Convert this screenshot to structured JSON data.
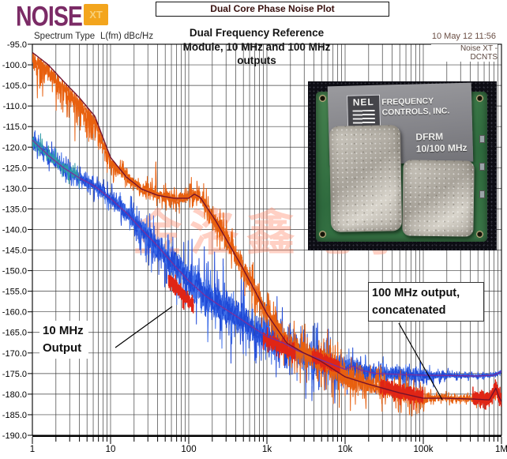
{
  "window": {
    "title": "Dual Core Phase Noise Plot"
  },
  "logo": {
    "name": "NOISE",
    "badge": "XT"
  },
  "labels": {
    "spectrum_type": "Spectrum Type",
    "unit": "L(fm) dBc/Hz"
  },
  "status": {
    "datetime": "10 May 12   11:56",
    "device": "Noise XT - DCNTS"
  },
  "chart_title": {
    "line1": "Dual Frequency Reference",
    "line2": "Module, 10 MHz and 100 MHz",
    "line3": "outputs"
  },
  "annotations": {
    "low": {
      "line1": "10 MHz",
      "line2": "Output"
    },
    "high": {
      "line1": "100 MHz output,",
      "line2": "concatenated"
    }
  },
  "watermark": "金洛鑫电子",
  "photo": {
    "brand": "NEL",
    "company_line1": "FREQUENCY",
    "company_line2": "CONTROLS, INC.",
    "model": "DFRM",
    "model_freq": "10/100 MHz"
  },
  "chart_data": {
    "type": "line",
    "title": "Dual Frequency Reference Module, 10 MHz and 100 MHz outputs",
    "ylabel": "L(fm) dBc/Hz",
    "xscale": "log",
    "xlim": [
      1,
      1000000
    ],
    "ylim": [
      -190,
      -95
    ],
    "ytick_step": 5,
    "xtick_labels": [
      "1",
      "10",
      "100",
      "1k",
      "10k",
      "100k",
      "1M"
    ],
    "grid": true,
    "colors": {
      "grid": "#2a2a2a",
      "frame": "#000000",
      "red_overlay": "#e02515",
      "watermark": "#ff8f73"
    },
    "series": [
      {
        "name": "100 MHz output, concatenated",
        "color_noise": "#e8600f",
        "color_line": "#74122c",
        "ride_top_below": 13,
        "anchors": [
          [
            1,
            -97
          ],
          [
            1.6,
            -100
          ],
          [
            2.5,
            -104
          ],
          [
            4,
            -108
          ],
          [
            6.3,
            -112.5
          ],
          [
            10,
            -122.5
          ],
          [
            16,
            -127.3
          ],
          [
            25,
            -130.2
          ],
          [
            40,
            -131.7
          ],
          [
            64,
            -132.4
          ],
          [
            100,
            -132.4
          ],
          [
            118,
            -131.4
          ],
          [
            140,
            -132.2
          ],
          [
            220,
            -137.8
          ],
          [
            326,
            -143.5
          ],
          [
            488,
            -149.3
          ],
          [
            708,
            -155
          ],
          [
            1000,
            -160.5
          ],
          [
            1800,
            -167.6
          ],
          [
            2900,
            -169.9
          ],
          [
            4900,
            -172
          ],
          [
            10000,
            -175.8
          ],
          [
            20000,
            -177.6
          ],
          [
            50000,
            -179.7
          ],
          [
            100000,
            -181
          ],
          [
            200000,
            -181
          ],
          [
            450000,
            -181.2
          ],
          [
            700000,
            -181.4
          ],
          [
            850000,
            -178.5
          ],
          [
            920000,
            -180.5
          ],
          [
            1000000,
            -181.8
          ]
        ],
        "noise_hw": [
          [
            1,
            5
          ],
          [
            3,
            5.5
          ],
          [
            8,
            4
          ],
          [
            15,
            2.5
          ],
          [
            40,
            2.5
          ],
          [
            100,
            3
          ],
          [
            150,
            3
          ],
          [
            250,
            5
          ],
          [
            500,
            5.5
          ],
          [
            1000,
            4.5
          ],
          [
            2000,
            5
          ],
          [
            5000,
            6
          ],
          [
            10000,
            6
          ],
          [
            20000,
            4
          ],
          [
            40000,
            4.5
          ],
          [
            80000,
            4
          ],
          [
            120000,
            2
          ],
          [
            200000,
            1.2
          ],
          [
            400000,
            1.3
          ],
          [
            700000,
            1.5
          ],
          [
            850000,
            2.5
          ],
          [
            1000000,
            1.2
          ]
        ],
        "spikes": [
          [
            38,
            8
          ],
          [
            1050,
            6
          ],
          [
            4500,
            -7
          ]
        ],
        "red_segments": [
          [
            28000,
            100000,
            0.3,
            1.8
          ],
          [
            430000,
            1000000,
            0.2,
            1.6
          ]
        ]
      },
      {
        "name": "10 MHz Output",
        "color_noise": "#1f49d6",
        "color_noise2": "#3f6fe8",
        "color_start": "#2e9aa8",
        "color_line": "#7a2f9e",
        "anchors": [
          [
            1,
            -118.3
          ],
          [
            1.6,
            -122
          ],
          [
            2.5,
            -125
          ],
          [
            4,
            -127.5
          ],
          [
            6.3,
            -129.5
          ],
          [
            10,
            -132.5
          ],
          [
            16,
            -136
          ],
          [
            25,
            -140
          ],
          [
            40,
            -144
          ],
          [
            64,
            -148.5
          ],
          [
            100,
            -152.5
          ],
          [
            160,
            -156
          ],
          [
            250,
            -158.5
          ],
          [
            400,
            -161
          ],
          [
            630,
            -163.5
          ],
          [
            1000,
            -166
          ],
          [
            1600,
            -167.5
          ],
          [
            2500,
            -169.5
          ],
          [
            4000,
            -171
          ],
          [
            6300,
            -172.5
          ],
          [
            10000,
            -174
          ],
          [
            12500,
            -173.2
          ],
          [
            16000,
            -174.2
          ],
          [
            25000,
            -175
          ],
          [
            50000,
            -175.2
          ],
          [
            100000,
            -175.4
          ],
          [
            250000,
            -175.5
          ],
          [
            500000,
            -175.6
          ],
          [
            800000,
            -175.4
          ],
          [
            1000000,
            -174.5
          ]
        ],
        "noise_hw": [
          [
            1,
            2.6
          ],
          [
            2,
            2.8
          ],
          [
            5,
            2.6
          ],
          [
            10,
            3
          ],
          [
            30,
            6
          ],
          [
            100,
            8
          ],
          [
            300,
            8
          ],
          [
            1000,
            7.5
          ],
          [
            3000,
            7
          ],
          [
            8000,
            6
          ],
          [
            15000,
            4
          ],
          [
            40000,
            3
          ],
          [
            100000,
            3
          ],
          [
            150000,
            1.5
          ],
          [
            300000,
            0.9
          ],
          [
            1000000,
            0.9
          ]
        ],
        "spikes": [
          [
            700,
            -9
          ],
          [
            1800,
            -8
          ],
          [
            12000,
            2.5
          ]
        ],
        "red_segments": [
          [
            55,
            115,
            -5,
            1.6
          ],
          [
            900,
            2300,
            -1,
            1.6
          ],
          [
            3800,
            8500,
            0,
            1.5
          ]
        ]
      }
    ]
  }
}
